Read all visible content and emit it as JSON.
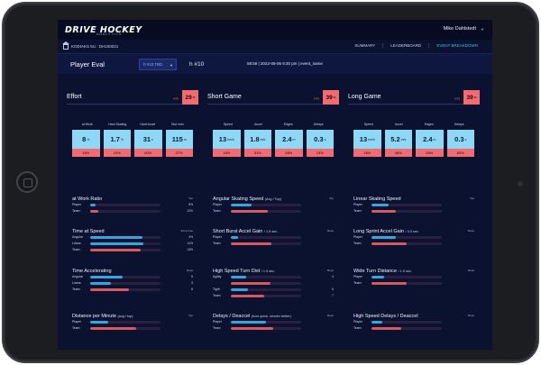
{
  "app": {
    "logo": "DRIVE HOCKEY",
    "logo_sub": "ANALYTICS",
    "user": "Mike Dahlstedt"
  },
  "breadcrumb": "KODIAKS 5U : DH100021",
  "nav": [
    "SUMMARY",
    "LEADERBOARD",
    "EVENT BREAKDOWN"
  ],
  "eval": {
    "title": "Player Eval",
    "select": "h #10 TBD",
    "player_num": "h #10",
    "info": "58:58 | 2022-06-06 9:30 pm | event_name"
  },
  "sections": [
    {
      "title": "Effort",
      "pct_label": "PPI",
      "pct": "29",
      "tiles": [
        {
          "head": "at Work",
          "value": "8",
          "unit": "%",
          "pct": "16%"
        },
        {
          "head": "Hard Skating",
          "value": "1.7",
          "unit": "%",
          "pct": "10%"
        },
        {
          "head": "Hard Accel",
          "value": "31",
          "unit": "s",
          "pct": "60%"
        },
        {
          "head": "Dist /min.",
          "value": "115",
          "unit": "m",
          "pct": "27%"
        }
      ],
      "metrics": [
        {
          "title": "at Work Ratio",
          "note": "",
          "unit": "Top",
          "rows": [
            {
              "label": "Player",
              "value": "8%",
              "fill": 0.08,
              "kind": "player"
            },
            {
              "label": "Team",
              "value": "12%",
              "fill": 0.12,
              "kind": "team"
            }
          ]
        },
        {
          "title": "Time at Speed",
          "note": "",
          "unit": "Zone time",
          "rows": [
            {
              "label": "Angular",
              "value": "4%",
              "fill": 0.74,
              "kind": "player"
            },
            {
              "label": "Linear",
              "value": "11%",
              "fill": 0.76,
              "kind": "player"
            },
            {
              "label": "Team",
              "value": "14%",
              "fill": 0.72,
              "kind": "team"
            }
          ]
        },
        {
          "title": "Time Accelerating",
          "note": "",
          "unit": "Reps",
          "rows": [
            {
              "label": "Angular",
              "value": "5",
              "fill": 0.46,
              "kind": "player"
            },
            {
              "label": "Linear",
              "value": "3",
              "fill": 0.3,
              "kind": "player"
            },
            {
              "label": "Team",
              "value": "8",
              "fill": 0.55,
              "kind": "team"
            }
          ]
        },
        {
          "title": "Distance per Minute",
          "note": "(avg / top)",
          "unit": "Top",
          "rows": [
            {
              "label": "Player",
              "value": "",
              "fill": 0.26,
              "kind": "player"
            },
            {
              "label": "Team",
              "value": "",
              "fill": 0.66,
              "kind": "team"
            }
          ]
        }
      ]
    },
    {
      "title": "Short Game",
      "pct_label": "PPI",
      "pct": "39",
      "tiles": [
        {
          "head": "Speed",
          "value": "13",
          "unit": "km/h",
          "pct": "18%"
        },
        {
          "head": "Accel",
          "value": "1.8",
          "unit": "m/s",
          "pct": "31%"
        },
        {
          "head": "Edges",
          "value": "2.4",
          "unit": "m",
          "pct": "28%"
        },
        {
          "head": "Delays",
          "value": "0.3",
          "unit": "s",
          "pct": "23%"
        }
      ],
      "metrics": [
        {
          "title": "Angular Skating Speed",
          "note": "(Avg / Top)",
          "unit": "Top",
          "rows": [
            {
              "label": "Player",
              "value": "",
              "fill": 0.3,
              "kind": "player"
            },
            {
              "label": "Team",
              "value": "",
              "fill": 0.52,
              "kind": "team"
            }
          ]
        },
        {
          "title": "Short Burst Accel Gain",
          "note": "/ 1.5 sec.",
          "unit": "Reps",
          "rows": [
            {
              "label": "Player",
              "value": "",
              "fill": 0.1,
              "kind": "player"
            },
            {
              "label": "Team",
              "value": "",
              "fill": 0.58,
              "kind": "team"
            }
          ]
        },
        {
          "title": "High Speed Turn Dist",
          "note": "/ 1.5 sec.",
          "unit": "Reps",
          "rows": [
            {
              "label": "Agility",
              "value": "4",
              "fill": 0.22,
              "kind": "player"
            },
            {
              "label": "",
              "value": "",
              "fill": 0.56,
              "kind": "team"
            },
            {
              "label": "Tight",
              "value": "6",
              "fill": 0.24,
              "kind": "player"
            },
            {
              "label": "Team",
              "value": "7",
              "fill": 0.48,
              "kind": "team"
            }
          ]
        },
        {
          "title": "Delays / Deaccel",
          "note": "(how quick, shorter better)",
          "unit": "Reps",
          "rows": [
            {
              "label": "Player",
              "value": "",
              "fill": 0.5,
              "kind": "player"
            },
            {
              "label": "Team",
              "value": "",
              "fill": 0.6,
              "kind": "team"
            }
          ]
        }
      ]
    },
    {
      "title": "Long Game",
      "pct_label": "PPI",
      "pct": "39",
      "tiles": [
        {
          "head": "Speed",
          "value": "13",
          "unit": "km/h",
          "pct": "18%"
        },
        {
          "head": "Accel",
          "value": "5.2",
          "unit": "m/s",
          "pct": "48%"
        },
        {
          "head": "Edges",
          "value": "2.4",
          "unit": "m",
          "pct": "28%"
        },
        {
          "head": "Delays",
          "value": "0.3",
          "unit": "s",
          "pct": "83%"
        }
      ],
      "metrics": [
        {
          "title": "Linear Skating Speed",
          "note": "",
          "unit": "Top",
          "rows": [
            {
              "label": "Player",
              "value": "",
              "fill": 0.24,
              "kind": "player"
            },
            {
              "label": "Team",
              "value": "",
              "fill": 0.34,
              "kind": "team"
            }
          ]
        },
        {
          "title": "Long Sprint Accel Gain",
          "note": "/ 3.0 sec.",
          "unit": "Reps",
          "rows": [
            {
              "label": "Player",
              "value": "",
              "fill": 0.34,
              "kind": "player"
            },
            {
              "label": "Team",
              "value": "",
              "fill": 0.5,
              "kind": "team"
            }
          ]
        },
        {
          "title": "Wide Turn Distance",
          "note": "/ 1.5 sec.",
          "unit": "Reps",
          "rows": [
            {
              "label": "Player",
              "value": "",
              "fill": 0.18,
              "kind": "player"
            },
            {
              "label": "Team",
              "value": "",
              "fill": 0.5,
              "kind": "team"
            }
          ]
        },
        {
          "title": "High Speed Delays / Deaccel",
          "note": "",
          "unit": "Reps",
          "rows": [
            {
              "label": "Player",
              "value": "",
              "fill": 0.16,
              "kind": "player"
            },
            {
              "label": "Team",
              "value": "",
              "fill": 0.42,
              "kind": "team"
            }
          ]
        }
      ]
    }
  ]
}
